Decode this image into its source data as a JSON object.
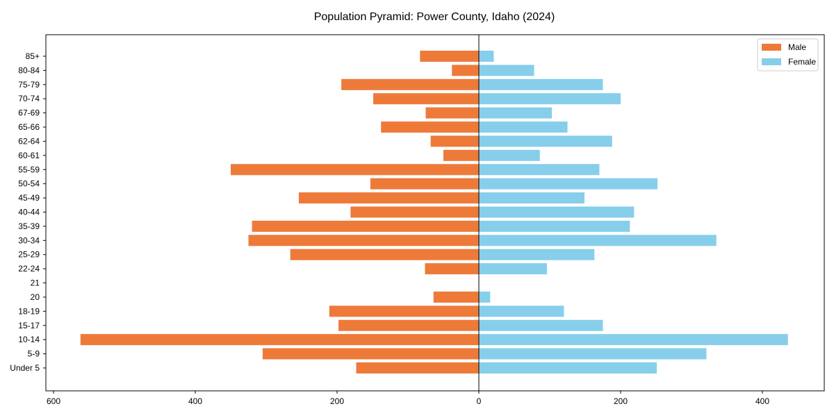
{
  "chart_data": {
    "type": "bar",
    "orientation": "horizontal-diverging",
    "title": "Population Pyramid: Power County, Idaho (2024)",
    "xlabel": "",
    "ylabel": "",
    "xlim": [
      -600,
      450
    ],
    "x_ticks": [
      -600,
      -400,
      -200,
      0,
      200,
      400
    ],
    "x_tick_labels": [
      "600",
      "400",
      "200",
      "0",
      "200",
      "400"
    ],
    "categories": [
      "85+",
      "80-84",
      "75-79",
      "70-74",
      "67-69",
      "65-66",
      "62-64",
      "60-61",
      "55-59",
      "50-54",
      "45-49",
      "40-44",
      "35-39",
      "30-34",
      "25-29",
      "22-24",
      "21",
      "20",
      "18-19",
      "15-17",
      "10-14",
      "5-9",
      "Under 5"
    ],
    "series": [
      {
        "name": "Male",
        "color": "#ee7a3a",
        "values": [
          83,
          38,
          194,
          149,
          75,
          138,
          68,
          50,
          350,
          153,
          254,
          181,
          320,
          325,
          266,
          76,
          0,
          64,
          211,
          198,
          562,
          305,
          173
        ]
      },
      {
        "name": "Female",
        "color": "#87ceeb",
        "values": [
          21,
          78,
          175,
          200,
          103,
          125,
          188,
          86,
          170,
          252,
          149,
          219,
          213,
          335,
          163,
          96,
          0,
          16,
          120,
          175,
          436,
          321,
          251
        ]
      }
    ],
    "legend": {
      "placement": "top-right",
      "entries": [
        "Male",
        "Female"
      ]
    },
    "grid": false
  }
}
